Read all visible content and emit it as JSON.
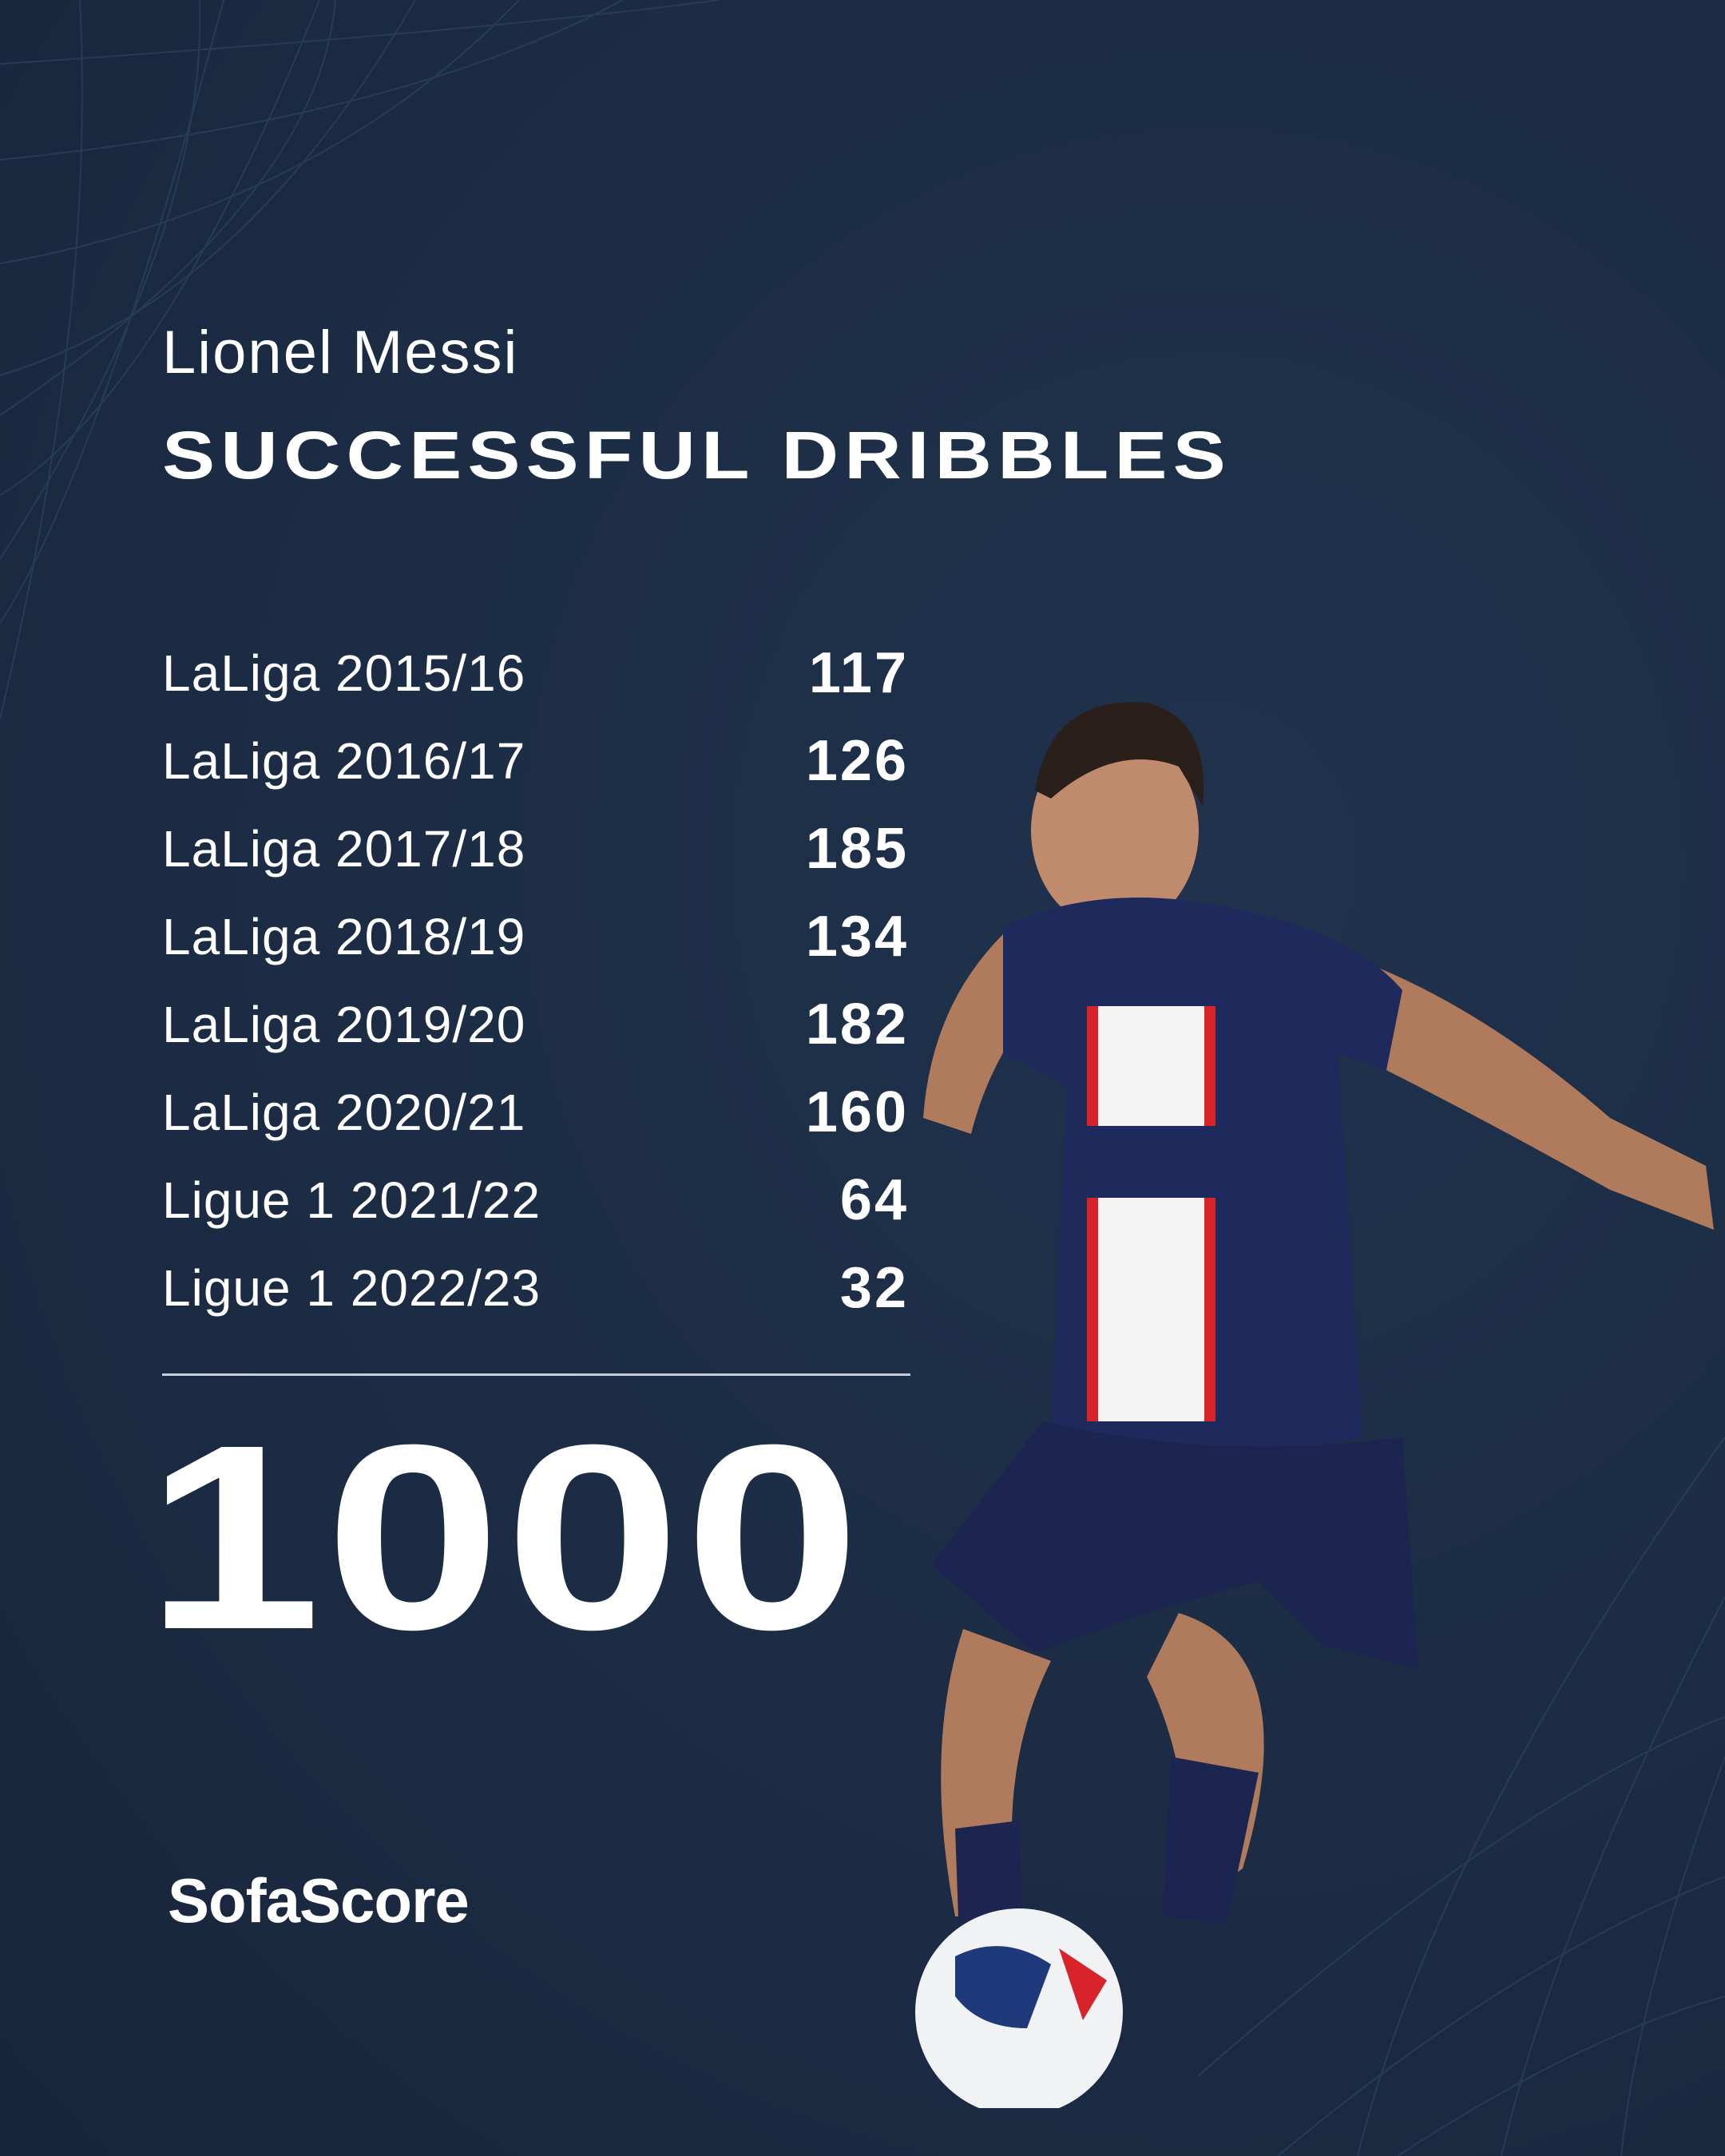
{
  "player_name": "Lionel Messi",
  "stat_title": "SUCCESSFUL DRIBBLES",
  "seasons": [
    {
      "label": "LaLiga 2015/16",
      "value": "117"
    },
    {
      "label": "LaLiga 2016/17",
      "value": "126"
    },
    {
      "label": "LaLiga 2017/18",
      "value": "185"
    },
    {
      "label": "LaLiga 2018/19",
      "value": "134"
    },
    {
      "label": "LaLiga 2019/20",
      "value": "182"
    },
    {
      "label": "LaLiga 2020/21",
      "value": "160"
    },
    {
      "label": "Ligue 1 2021/22",
      "value": "64"
    },
    {
      "label": "Ligue 1 2022/23",
      "value": "32"
    }
  ],
  "total": "1000",
  "brand": "SofaScore",
  "colors": {
    "background": "#1d2e47",
    "text": "#ffffff",
    "kit_navy": "#1f2a5c",
    "kit_red": "#d8232a"
  },
  "photo": {
    "subject": "player-dribbling-photo"
  }
}
